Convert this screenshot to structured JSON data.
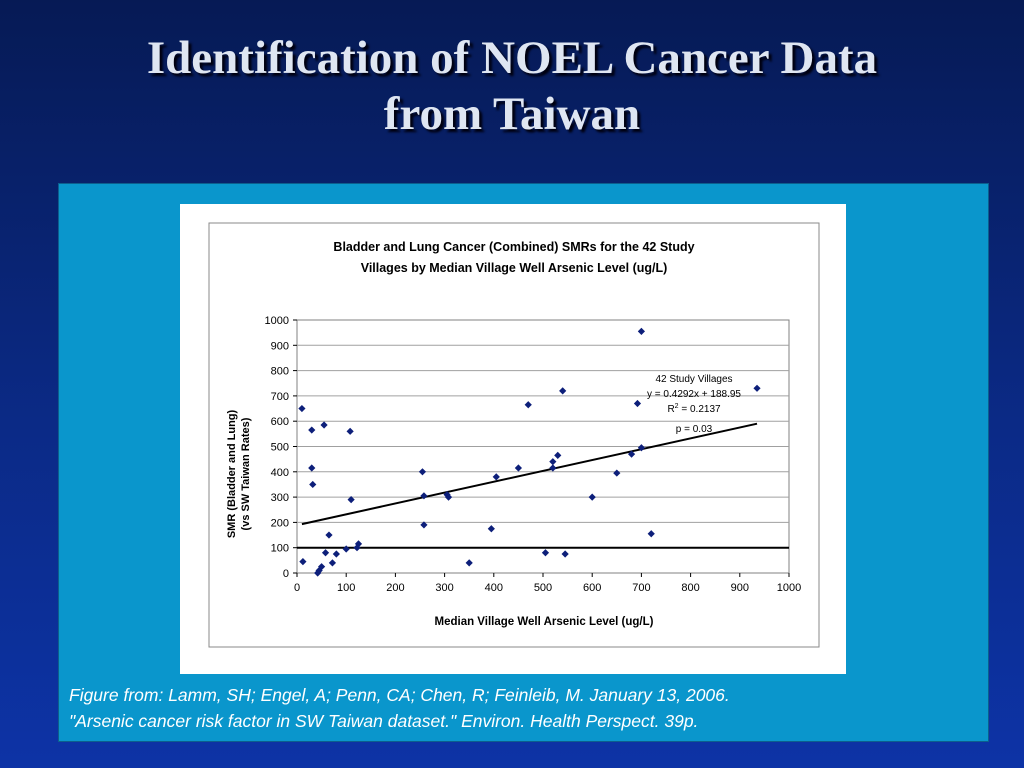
{
  "slide": {
    "title_line1": "Identification of NOEL Cancer Data",
    "title_line2": "from Taiwan",
    "caption_line1": "Figure from: Lamm, SH; Engel, A; Penn, CA; Chen, R; Feinleib, M. January 13, 2006.",
    "caption_line2": "\"Arsenic cancer risk factor in SW Taiwan dataset.\" Environ. Health Perspect. 39p."
  },
  "colors": {
    "background": "#0b2a86",
    "panel": "#0a96cc",
    "title_text": "#dfe6f2",
    "marker": "#0d1f7a",
    "line": "#000000"
  },
  "chart_data": {
    "type": "scatter",
    "title_line1": "Bladder and Lung Cancer (Combined) SMRs for the 42 Study",
    "title_line2": "Villages by Median Village Well Arsenic Level (ug/L)",
    "xlabel": "Median Village Well Arsenic Level (ug/L)",
    "ylabel_line1": "SMR (Bladder and Lung)",
    "ylabel_line2": "(vs SW Taiwan Rates)",
    "xlim": [
      0,
      1000
    ],
    "ylim": [
      0,
      1000
    ],
    "xticks": [
      0,
      100,
      200,
      300,
      400,
      500,
      600,
      700,
      800,
      900,
      1000
    ],
    "yticks": [
      0,
      100,
      200,
      300,
      400,
      500,
      600,
      700,
      800,
      900,
      1000
    ],
    "grid": "horizontal",
    "annotation": {
      "line1": "42 Study Villages",
      "line2": "y = 0.4292x + 188.95",
      "line3_prefix": "R",
      "line3_sup": "2",
      "line3_suffix": " = 0.2137",
      "line4": "p = 0.03"
    },
    "regression": {
      "slope": 0.4292,
      "intercept": 188.95,
      "x_range": [
        10,
        935
      ]
    },
    "reference_line": {
      "y": 100,
      "x_range": [
        0,
        1000
      ]
    },
    "points": [
      {
        "x": 10,
        "y": 650
      },
      {
        "x": 12,
        "y": 45
      },
      {
        "x": 30,
        "y": 415
      },
      {
        "x": 30,
        "y": 565
      },
      {
        "x": 32,
        "y": 350
      },
      {
        "x": 42,
        "y": 0
      },
      {
        "x": 45,
        "y": 10
      },
      {
        "x": 50,
        "y": 25
      },
      {
        "x": 55,
        "y": 585
      },
      {
        "x": 58,
        "y": 80
      },
      {
        "x": 65,
        "y": 150
      },
      {
        "x": 72,
        "y": 40
      },
      {
        "x": 80,
        "y": 75
      },
      {
        "x": 100,
        "y": 95
      },
      {
        "x": 108,
        "y": 560
      },
      {
        "x": 110,
        "y": 290
      },
      {
        "x": 122,
        "y": 100
      },
      {
        "x": 125,
        "y": 115
      },
      {
        "x": 255,
        "y": 400
      },
      {
        "x": 258,
        "y": 305
      },
      {
        "x": 258,
        "y": 190
      },
      {
        "x": 305,
        "y": 310
      },
      {
        "x": 308,
        "y": 300
      },
      {
        "x": 350,
        "y": 40
      },
      {
        "x": 395,
        "y": 175
      },
      {
        "x": 405,
        "y": 380
      },
      {
        "x": 450,
        "y": 415
      },
      {
        "x": 470,
        "y": 665
      },
      {
        "x": 505,
        "y": 80
      },
      {
        "x": 520,
        "y": 440
      },
      {
        "x": 520,
        "y": 415
      },
      {
        "x": 530,
        "y": 465
      },
      {
        "x": 540,
        "y": 720
      },
      {
        "x": 545,
        "y": 75
      },
      {
        "x": 600,
        "y": 300
      },
      {
        "x": 650,
        "y": 395
      },
      {
        "x": 680,
        "y": 470
      },
      {
        "x": 692,
        "y": 670
      },
      {
        "x": 700,
        "y": 495
      },
      {
        "x": 700,
        "y": 955
      },
      {
        "x": 720,
        "y": 155
      },
      {
        "x": 935,
        "y": 730
      }
    ]
  }
}
